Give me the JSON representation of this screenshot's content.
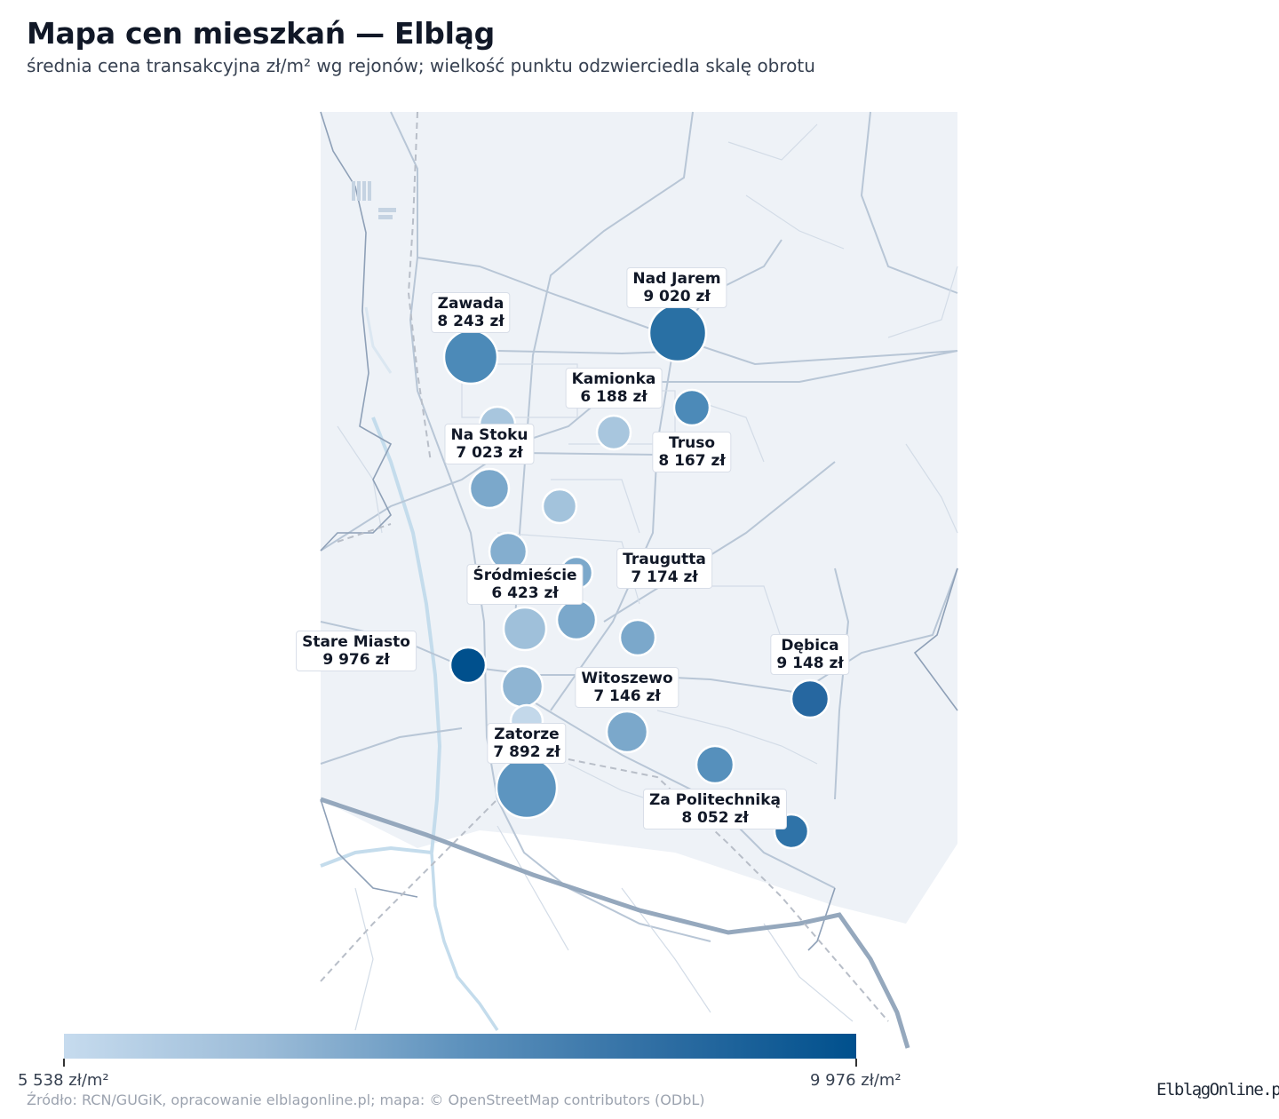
{
  "title": "Mapa cen mieszkań — Elbląg",
  "subtitle": "średnia cena transakcyjna zł/m² wg rejonów; wielkość punktu odzwierciedla skalę obrotu",
  "colorbar": {
    "min_label": "5 538 zł/m²",
    "max_label": "9 976 zł/m²",
    "min": 5538,
    "max": 9976,
    "color_low": "#c6dbee",
    "color_high": "#00508d"
  },
  "source": "Źródło: RCN/GUGiK, opracowanie elblagonline.pl; mapa: © OpenStreetMap contributors (ODbL)",
  "logo": "ElblągOnline.pl",
  "regions": [
    {
      "name": "Nad Jarem",
      "value": "9 020 zł"
    },
    {
      "name": "Zawada",
      "value": "8 243 zł"
    },
    {
      "name": "Kamionka",
      "value": "6 188 zł"
    },
    {
      "name": "Truso",
      "value": "8 167 zł"
    },
    {
      "name": "Na Stoku",
      "value": "7 023 zł"
    },
    {
      "name": "Traugutta",
      "value": "7 174 zł"
    },
    {
      "name": "Śródmieście",
      "value": "6 423 zł"
    },
    {
      "name": "Stare Miasto",
      "value": "9 976 zł"
    },
    {
      "name": "Dębica",
      "value": "9 148 zł"
    },
    {
      "name": "Witoszewo",
      "value": "7 146 zł"
    },
    {
      "name": "Zatorze",
      "value": "7 892 zł"
    },
    {
      "name": "Za Politechniką",
      "value": "8 052 zł"
    }
  ]
}
